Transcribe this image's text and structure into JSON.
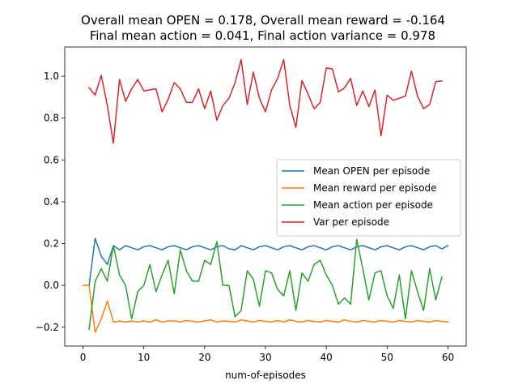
{
  "chart_data": {
    "type": "line",
    "title_line1": "Overall mean OPEN = 0.178, Overall mean reward = -0.164",
    "title_line2": " Final mean action = 0.041, Final action variance = 0.978",
    "xlabel": "num-of-episodes",
    "ylabel": "",
    "xlim": [
      -3,
      63
    ],
    "ylim": [
      -0.29,
      1.14
    ],
    "xticks": [
      0,
      10,
      20,
      30,
      40,
      50,
      60
    ],
    "yticks": [
      -0.2,
      0.0,
      0.2,
      0.4,
      0.6,
      0.8,
      1.0
    ],
    "grid": false,
    "legend_position": "center-right",
    "x": [
      0,
      1,
      2,
      3,
      4,
      5,
      6,
      7,
      8,
      9,
      10,
      11,
      12,
      13,
      14,
      15,
      16,
      17,
      18,
      19,
      20,
      21,
      22,
      23,
      24,
      25,
      26,
      27,
      28,
      29,
      30,
      31,
      32,
      33,
      34,
      35,
      36,
      37,
      38,
      39,
      40,
      41,
      42,
      43,
      44,
      45,
      46,
      47,
      48,
      49,
      50,
      51,
      52,
      53,
      54,
      55,
      56,
      57,
      58,
      59,
      60
    ],
    "series": [
      {
        "name": "Mean OPEN per episode",
        "color": "#1f77b4",
        "values": [
          null,
          0.0,
          0.225,
          0.14,
          0.1,
          0.19,
          0.17,
          0.19,
          0.18,
          0.17,
          0.185,
          0.19,
          0.18,
          0.17,
          0.185,
          0.19,
          0.18,
          0.17,
          0.185,
          0.19,
          0.18,
          0.17,
          0.185,
          0.19,
          0.175,
          0.17,
          0.19,
          0.18,
          0.17,
          0.185,
          0.19,
          0.18,
          0.17,
          0.185,
          0.19,
          0.18,
          0.17,
          0.185,
          0.19,
          0.18,
          0.17,
          0.185,
          0.19,
          0.18,
          0.17,
          0.185,
          0.19,
          0.18,
          0.17,
          0.185,
          0.19,
          0.18,
          0.17,
          0.185,
          0.19,
          0.18,
          0.17,
          0.185,
          0.19,
          0.175,
          0.19
        ]
      },
      {
        "name": "Mean reward per episode",
        "color": "#ff7f0e",
        "values": [
          0.0,
          0.0,
          -0.225,
          -0.16,
          -0.075,
          -0.175,
          -0.17,
          -0.175,
          -0.17,
          -0.175,
          -0.17,
          -0.175,
          -0.165,
          -0.175,
          -0.17,
          -0.17,
          -0.175,
          -0.168,
          -0.172,
          -0.175,
          -0.17,
          -0.165,
          -0.175,
          -0.17,
          -0.172,
          -0.175,
          -0.165,
          -0.17,
          -0.175,
          -0.168,
          -0.172,
          -0.175,
          -0.168,
          -0.175,
          -0.165,
          -0.172,
          -0.175,
          -0.168,
          -0.172,
          -0.175,
          -0.168,
          -0.172,
          -0.175,
          -0.165,
          -0.172,
          -0.175,
          -0.168,
          -0.172,
          -0.175,
          -0.168,
          -0.172,
          -0.175,
          -0.168,
          -0.172,
          -0.175,
          -0.168,
          -0.172,
          -0.175,
          -0.168,
          -0.172,
          -0.175
        ]
      },
      {
        "name": "Mean action per episode",
        "color": "#2ca02c",
        "values": [
          null,
          -0.21,
          0.02,
          0.08,
          0.02,
          0.19,
          0.05,
          0.0,
          -0.16,
          -0.03,
          0.0,
          0.1,
          -0.03,
          0.05,
          0.12,
          -0.04,
          0.17,
          0.07,
          0.02,
          0.02,
          0.12,
          0.1,
          0.21,
          0.0,
          0.0,
          -0.15,
          -0.12,
          0.07,
          0.03,
          -0.1,
          0.07,
          0.06,
          -0.02,
          -0.05,
          0.07,
          -0.12,
          0.06,
          0.02,
          0.1,
          0.12,
          0.05,
          0.0,
          -0.09,
          -0.06,
          -0.09,
          0.22,
          0.08,
          -0.07,
          0.06,
          0.07,
          -0.05,
          -0.11,
          0.05,
          -0.16,
          0.07,
          -0.03,
          -0.12,
          0.08,
          -0.07,
          0.04,
          null
        ]
      },
      {
        "name": "Var per episode",
        "color": "#d62728",
        "values": [
          null,
          0.945,
          0.91,
          1.005,
          0.86,
          0.68,
          0.985,
          0.88,
          0.94,
          0.985,
          0.93,
          0.935,
          0.94,
          0.83,
          0.89,
          0.97,
          0.94,
          0.875,
          0.875,
          0.94,
          0.845,
          0.93,
          0.79,
          0.86,
          0.895,
          0.97,
          1.08,
          0.865,
          1.02,
          0.895,
          0.83,
          0.935,
          0.99,
          1.08,
          0.86,
          0.755,
          0.98,
          0.915,
          0.845,
          0.875,
          1.04,
          1.035,
          0.925,
          0.945,
          0.99,
          0.86,
          0.93,
          0.855,
          0.935,
          0.715,
          0.91,
          0.885,
          0.895,
          0.905,
          1.025,
          0.905,
          0.845,
          0.865,
          0.975,
          0.978,
          null
        ]
      }
    ]
  }
}
